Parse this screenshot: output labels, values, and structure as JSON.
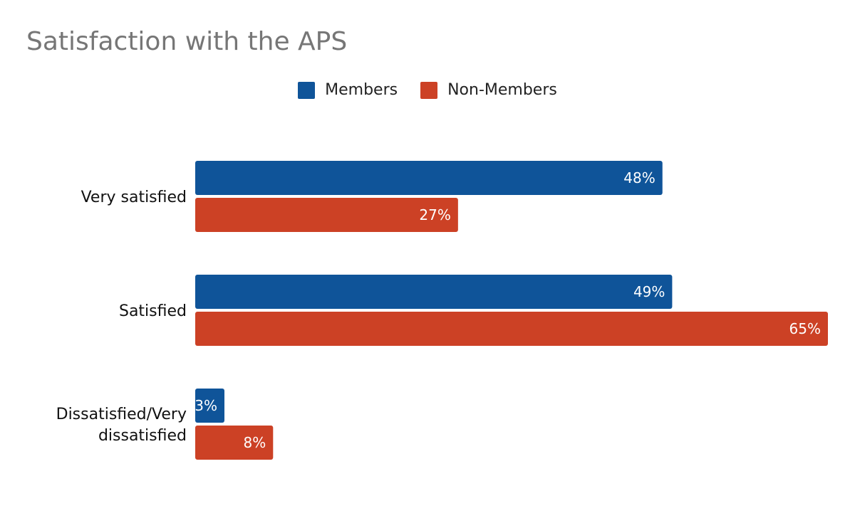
{
  "chart_data": {
    "type": "bar",
    "orientation": "horizontal",
    "title": "Satisfaction with the APS",
    "categories": [
      [
        "Very satisfied"
      ],
      [
        "Satisfied"
      ],
      [
        "Dissatisfied/Very",
        "dissatisfied"
      ]
    ],
    "series": [
      {
        "name": "Members",
        "color": "#0f5499",
        "values": [
          48,
          49,
          3
        ],
        "labels": [
          "48%",
          "49%",
          "3%"
        ]
      },
      {
        "name": "Non-Members",
        "color": "#cc4125",
        "values": [
          27,
          65,
          8
        ],
        "labels": [
          "27%",
          "65%",
          "8%"
        ]
      }
    ],
    "value_unit": "%",
    "xlim": [
      0,
      65
    ],
    "grid": false,
    "legend_position": "top-center"
  }
}
